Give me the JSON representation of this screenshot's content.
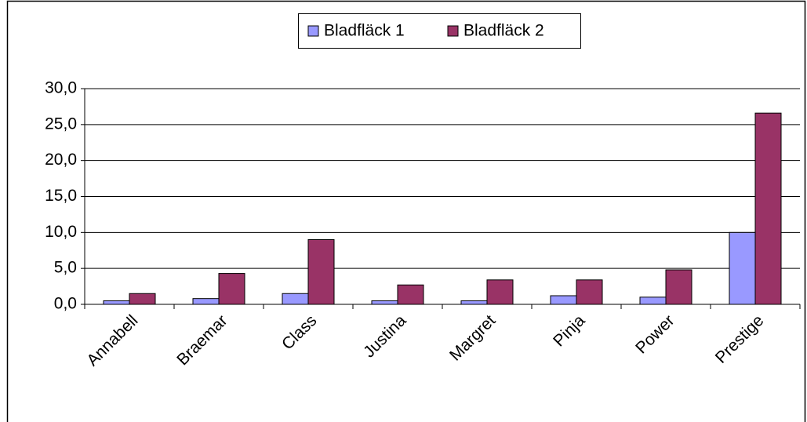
{
  "chart_data": {
    "type": "bar",
    "categories": [
      "Annabell",
      "Braemar",
      "Class",
      "Justina",
      "Margret",
      "Pinja",
      "Power",
      "Prestige"
    ],
    "series": [
      {
        "name": "Bladfläck 1",
        "color": "#9999ff",
        "values": [
          0.5,
          0.8,
          1.5,
          0.5,
          0.5,
          1.2,
          1.0,
          10.0
        ]
      },
      {
        "name": "Bladfläck 2",
        "color": "#993366",
        "values": [
          1.5,
          4.3,
          9.0,
          2.7,
          3.4,
          3.4,
          4.8,
          26.6
        ]
      }
    ],
    "ylim": [
      0,
      30
    ],
    "yticks": [
      {
        "value": 0,
        "label": "0,0"
      },
      {
        "value": 5,
        "label": "5,0"
      },
      {
        "value": 10,
        "label": "10,0"
      },
      {
        "value": 15,
        "label": "15,0"
      },
      {
        "value": 20,
        "label": "20,0"
      },
      {
        "value": 25,
        "label": "25,0"
      },
      {
        "value": 30,
        "label": "30,0"
      }
    ],
    "grid": true,
    "legend": "top"
  }
}
